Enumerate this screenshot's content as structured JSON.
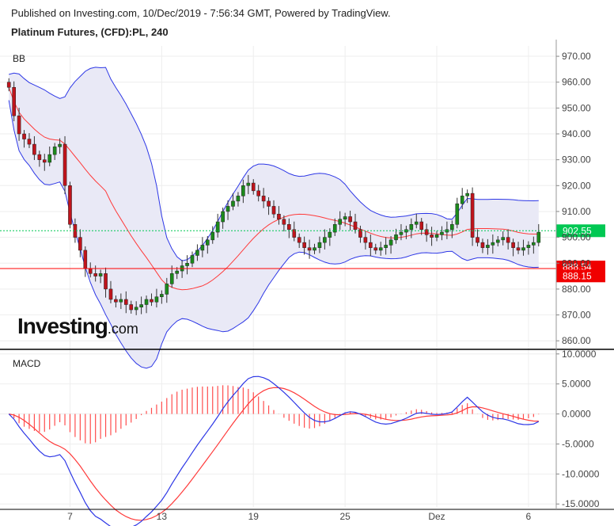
{
  "header": {
    "published": "Published on Investing.com, 10/Dec/2019 - 7:56:34 GMT, Powered by TradingView.",
    "title": "Platinum Futures, (CFD):PL, 240"
  },
  "logo": {
    "main": "Investing",
    "suffix": ".com"
  },
  "chart_data": [
    {
      "type": "candlestick",
      "panel_label": "BB",
      "indicator": "Bollinger Bands",
      "y_ticks": [
        "970.00",
        "960.00",
        "950.00",
        "940.00",
        "930.00",
        "920.00",
        "910.00",
        "900.00",
        "890.00",
        "880.00",
        "870.00",
        "860.00"
      ],
      "ylim": [
        857,
        974
      ],
      "x_ticks": [
        {
          "label": "7",
          "index": 12
        },
        {
          "label": "13",
          "index": 30
        },
        {
          "label": "19",
          "index": 48
        },
        {
          "label": "25",
          "index": 66
        },
        {
          "label": "Dez",
          "index": 84
        },
        {
          "label": "6",
          "index": 102
        }
      ],
      "close_series": [
        958,
        947,
        940,
        938,
        936,
        932,
        930,
        929,
        932,
        935,
        936,
        920,
        905,
        900,
        895,
        888,
        886,
        885,
        886,
        880,
        876,
        875,
        876,
        874,
        872,
        873,
        874,
        876,
        875,
        877,
        878,
        882,
        886,
        887,
        889,
        890,
        893,
        895,
        897,
        899,
        902,
        906,
        910,
        912,
        914,
        916,
        920,
        921,
        918,
        916,
        914,
        912,
        909,
        907,
        905,
        903,
        900,
        898,
        896,
        895,
        896,
        898,
        900,
        902,
        905,
        907,
        908,
        906,
        903,
        900,
        898,
        896,
        895,
        896,
        897,
        899,
        901,
        902,
        903,
        905,
        906,
        903,
        901,
        900,
        901,
        902,
        903,
        905,
        913,
        916,
        917,
        900,
        898,
        896,
        897,
        898,
        899,
        900,
        898,
        896,
        895,
        896,
        897,
        898,
        902
      ],
      "current_price": {
        "value": "902.55",
        "y": 902.55,
        "color": "#00c853"
      },
      "levels": [
        {
          "value": "888.54",
          "y": 888.54,
          "color": "#f00000"
        },
        {
          "value": "888.15",
          "y": 888.15,
          "color": "#f00000"
        }
      ],
      "grid": true,
      "colors": {
        "up": "#1b8a1b",
        "down": "#c0141c",
        "band": "#2d37e6",
        "band_fill": "#e9e9f6",
        "basis": "#ff3a3a",
        "level_line": "#ff0000"
      }
    },
    {
      "type": "line",
      "panel_label": "MACD",
      "indicator": "MACD",
      "y_ticks": [
        "10.0000",
        "5.0000",
        "0.0000",
        "-5.0000",
        "-10.0000",
        "-15.0000"
      ],
      "ylim": [
        -15.5,
        10.5
      ],
      "grid": true,
      "colors": {
        "macd": "#2d37e6",
        "signal": "#ff3a3a",
        "histogram": "#ff4d4d"
      }
    }
  ]
}
